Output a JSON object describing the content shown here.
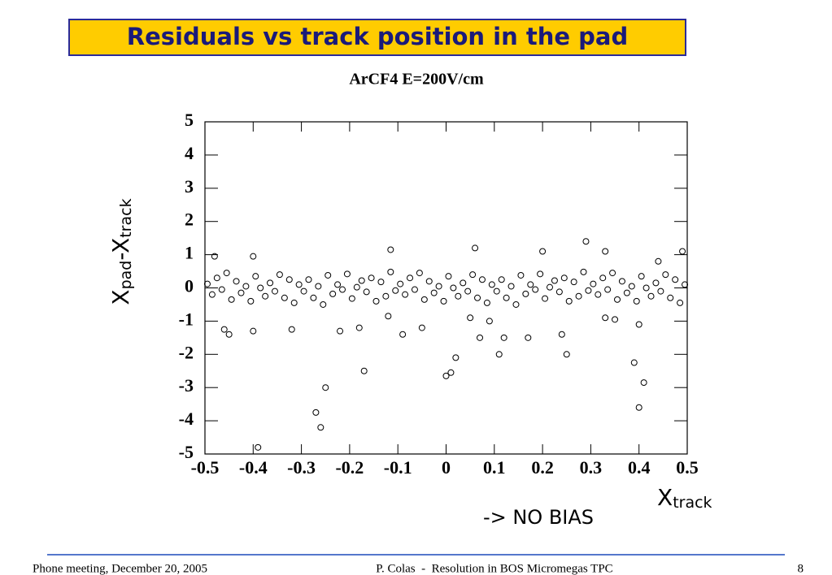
{
  "slide": {
    "title": "Residuals vs track position in the pad",
    "note": "-> NO BIAS",
    "footer_left": "Phone meeting, December 20, 2005",
    "footer_center": "P. Colas  -  Resolution in BOS Micromegas TPC",
    "footer_right": "8"
  },
  "chart_data": {
    "type": "scatter",
    "title": "ArCF4 E=200V/cm",
    "x_label": [
      "X",
      "track"
    ],
    "y_label": [
      "X",
      "pad",
      "-X",
      "track"
    ],
    "color": "#000000",
    "marker": "hollow-circle",
    "xlim": [
      -0.5,
      0.5
    ],
    "xticks": [
      -0.5,
      -0.4,
      -0.3,
      -0.2,
      -0.1,
      0,
      0.1,
      0.2,
      0.3,
      0.4,
      0.5
    ],
    "ylim": [
      -5,
      5
    ],
    "yticks": [
      -5,
      -4,
      -3,
      -2,
      -1,
      0,
      1,
      2,
      3,
      4,
      5
    ],
    "x": [
      -0.495,
      -0.485,
      -0.475,
      -0.465,
      -0.455,
      -0.445,
      -0.435,
      -0.425,
      -0.415,
      -0.405,
      -0.395,
      -0.385,
      -0.375,
      -0.365,
      -0.355,
      -0.345,
      -0.335,
      -0.325,
      -0.315,
      -0.305,
      -0.295,
      -0.285,
      -0.275,
      -0.265,
      -0.255,
      -0.245,
      -0.235,
      -0.225,
      -0.215,
      -0.205,
      -0.195,
      -0.185,
      -0.175,
      -0.165,
      -0.155,
      -0.145,
      -0.135,
      -0.125,
      -0.115,
      -0.105,
      -0.095,
      -0.085,
      -0.075,
      -0.065,
      -0.055,
      -0.045,
      -0.035,
      -0.025,
      -0.015,
      -0.005,
      0.005,
      0.015,
      0.025,
      0.035,
      0.045,
      0.055,
      0.065,
      0.075,
      0.085,
      0.095,
      0.105,
      0.115,
      0.125,
      0.135,
      0.145,
      0.155,
      0.165,
      0.175,
      0.185,
      0.195,
      0.205,
      0.215,
      0.225,
      0.235,
      0.245,
      0.255,
      0.265,
      0.275,
      0.285,
      0.295,
      0.305,
      0.315,
      0.325,
      0.335,
      0.345,
      0.355,
      0.365,
      0.375,
      0.385,
      0.395,
      0.405,
      0.415,
      0.425,
      0.435,
      0.445,
      0.455,
      0.465,
      0.475,
      0.485,
      0.495,
      -0.39,
      -0.27,
      -0.26,
      -0.25,
      -0.17,
      0.0,
      0.01,
      0.02,
      0.11,
      0.25,
      0.39,
      0.4,
      0.41,
      0.29,
      -0.115,
      0.06,
      0.07,
      -0.46,
      -0.45,
      -0.48,
      -0.4,
      0.2,
      0.33,
      0.33,
      0.44,
      0.49,
      -0.4,
      -0.32,
      -0.22,
      -0.18,
      -0.09,
      -0.05,
      0.09,
      0.12,
      0.17,
      0.24,
      0.4,
      0.35,
      -0.12,
      0.05
    ],
    "values": [
      0.12,
      -0.2,
      0.3,
      -0.05,
      0.45,
      -0.35,
      0.2,
      -0.15,
      0.05,
      -0.4,
      0.35,
      0.0,
      -0.25,
      0.15,
      -0.1,
      0.4,
      -0.3,
      0.25,
      -0.45,
      0.1,
      -0.1,
      0.25,
      -0.3,
      0.05,
      -0.5,
      0.38,
      -0.18,
      0.1,
      -0.05,
      0.42,
      -0.32,
      0.02,
      0.22,
      -0.12,
      0.3,
      -0.4,
      0.18,
      -0.25,
      0.48,
      -0.08,
      0.12,
      -0.2,
      0.3,
      -0.05,
      0.45,
      -0.35,
      0.2,
      -0.15,
      0.05,
      -0.4,
      0.35,
      0.0,
      -0.25,
      0.15,
      -0.1,
      0.4,
      -0.3,
      0.25,
      -0.45,
      0.1,
      -0.1,
      0.25,
      -0.3,
      0.05,
      -0.5,
      0.38,
      -0.18,
      0.1,
      -0.05,
      0.42,
      -0.32,
      0.02,
      0.22,
      -0.12,
      0.3,
      -0.4,
      0.18,
      -0.25,
      0.48,
      -0.08,
      0.12,
      -0.2,
      0.3,
      -0.05,
      0.45,
      -0.35,
      0.2,
      -0.15,
      0.05,
      -0.4,
      0.35,
      0.0,
      -0.25,
      0.15,
      -0.1,
      0.4,
      -0.3,
      0.25,
      -0.45,
      0.1,
      -4.8,
      -3.75,
      -4.2,
      -3.0,
      -2.5,
      -2.65,
      -2.55,
      -2.1,
      -2.0,
      -2.0,
      -2.25,
      -3.6,
      -2.85,
      1.4,
      1.15,
      1.2,
      -1.5,
      -1.25,
      -1.4,
      0.95,
      0.95,
      1.1,
      1.1,
      -0.9,
      0.8,
      1.1,
      -1.3,
      -1.25,
      -1.3,
      -1.2,
      -1.4,
      -1.2,
      -1.0,
      -1.5,
      -1.5,
      -1.4,
      -1.1,
      -0.95,
      -0.85,
      -0.9
    ]
  }
}
